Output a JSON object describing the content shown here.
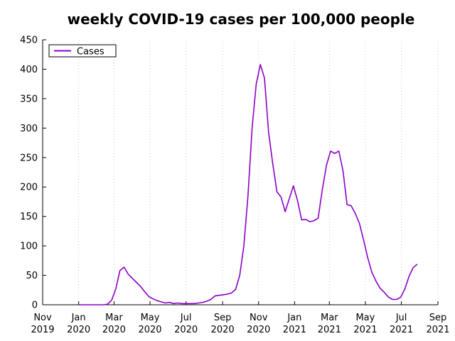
{
  "chart_data": {
    "type": "line",
    "title": "weekly COVID-19 cases per 100,000 people",
    "xlabel": "",
    "ylabel": "",
    "ylim": [
      0,
      450
    ],
    "yticks": [
      0,
      50,
      100,
      150,
      200,
      250,
      300,
      350,
      400,
      450
    ],
    "xlim": [
      "2019-11-01",
      "2021-09-01"
    ],
    "xticks": [
      {
        "date": "2019-11-01",
        "line1": "Nov",
        "line2": "2019"
      },
      {
        "date": "2020-01-01",
        "line1": "Jan",
        "line2": "2020"
      },
      {
        "date": "2020-03-01",
        "line1": "Mar",
        "line2": "2020"
      },
      {
        "date": "2020-05-01",
        "line1": "May",
        "line2": "2020"
      },
      {
        "date": "2020-07-01",
        "line1": "Jul",
        "line2": "2020"
      },
      {
        "date": "2020-09-01",
        "line1": "Sep",
        "line2": "2020"
      },
      {
        "date": "2020-11-01",
        "line1": "Nov",
        "line2": "2020"
      },
      {
        "date": "2021-01-01",
        "line1": "Jan",
        "line2": "2021"
      },
      {
        "date": "2021-03-01",
        "line1": "Mar",
        "line2": "2021"
      },
      {
        "date": "2021-05-01",
        "line1": "May",
        "line2": "2021"
      },
      {
        "date": "2021-07-01",
        "line1": "Jul",
        "line2": "2021"
      },
      {
        "date": "2021-09-01",
        "line1": "Sep",
        "line2": "2021"
      }
    ],
    "grid": {
      "x": true,
      "y": false
    },
    "legend": {
      "position": "top-left"
    },
    "series": [
      {
        "name": "Cases",
        "color": "#8b00c9",
        "points": [
          [
            "2020-01-01",
            0
          ],
          [
            "2020-01-08",
            0
          ],
          [
            "2020-01-15",
            0
          ],
          [
            "2020-01-22",
            0
          ],
          [
            "2020-01-29",
            0
          ],
          [
            "2020-02-05",
            0
          ],
          [
            "2020-02-12",
            0
          ],
          [
            "2020-02-19",
            1
          ],
          [
            "2020-02-26",
            8
          ],
          [
            "2020-03-04",
            27
          ],
          [
            "2020-03-11",
            58
          ],
          [
            "2020-03-18",
            64
          ],
          [
            "2020-03-25",
            52
          ],
          [
            "2020-04-01",
            45
          ],
          [
            "2020-04-08",
            38
          ],
          [
            "2020-04-15",
            31
          ],
          [
            "2020-04-22",
            22
          ],
          [
            "2020-04-29",
            14
          ],
          [
            "2020-05-06",
            10
          ],
          [
            "2020-05-13",
            7
          ],
          [
            "2020-05-20",
            5
          ],
          [
            "2020-05-27",
            3
          ],
          [
            "2020-06-03",
            4
          ],
          [
            "2020-06-10",
            2
          ],
          [
            "2020-06-17",
            3
          ],
          [
            "2020-06-24",
            2
          ],
          [
            "2020-07-01",
            2
          ],
          [
            "2020-07-08",
            2
          ],
          [
            "2020-07-15",
            2
          ],
          [
            "2020-07-22",
            3
          ],
          [
            "2020-07-29",
            4
          ],
          [
            "2020-08-05",
            6
          ],
          [
            "2020-08-12",
            9
          ],
          [
            "2020-08-19",
            15
          ],
          [
            "2020-08-26",
            16
          ],
          [
            "2020-09-02",
            17
          ],
          [
            "2020-09-09",
            18
          ],
          [
            "2020-09-16",
            20
          ],
          [
            "2020-09-23",
            26
          ],
          [
            "2020-09-30",
            50
          ],
          [
            "2020-10-07",
            100
          ],
          [
            "2020-10-14",
            185
          ],
          [
            "2020-10-21",
            300
          ],
          [
            "2020-10-28",
            375
          ],
          [
            "2020-11-04",
            408
          ],
          [
            "2020-11-11",
            385
          ],
          [
            "2020-11-18",
            293
          ],
          [
            "2020-11-25",
            240
          ],
          [
            "2020-12-02",
            192
          ],
          [
            "2020-12-09",
            183
          ],
          [
            "2020-12-16",
            158
          ],
          [
            "2020-12-23",
            180
          ],
          [
            "2020-12-30",
            202
          ],
          [
            "2021-01-06",
            177
          ],
          [
            "2021-01-13",
            144
          ],
          [
            "2021-01-20",
            145
          ],
          [
            "2021-01-27",
            141
          ],
          [
            "2021-02-03",
            143
          ],
          [
            "2021-02-10",
            147
          ],
          [
            "2021-02-17",
            195
          ],
          [
            "2021-02-24",
            237
          ],
          [
            "2021-03-03",
            261
          ],
          [
            "2021-03-10",
            257
          ],
          [
            "2021-03-17",
            261
          ],
          [
            "2021-03-24",
            228
          ],
          [
            "2021-03-31",
            170
          ],
          [
            "2021-04-07",
            168
          ],
          [
            "2021-04-14",
            155
          ],
          [
            "2021-04-21",
            138
          ],
          [
            "2021-04-28",
            110
          ],
          [
            "2021-05-05",
            80
          ],
          [
            "2021-05-12",
            55
          ],
          [
            "2021-05-19",
            40
          ],
          [
            "2021-05-26",
            28
          ],
          [
            "2021-06-02",
            21
          ],
          [
            "2021-06-09",
            13
          ],
          [
            "2021-06-16",
            9
          ],
          [
            "2021-06-23",
            9
          ],
          [
            "2021-06-30",
            13
          ],
          [
            "2021-07-07",
            27
          ],
          [
            "2021-07-14",
            48
          ],
          [
            "2021-07-21",
            63
          ],
          [
            "2021-07-28",
            69
          ]
        ]
      }
    ]
  }
}
